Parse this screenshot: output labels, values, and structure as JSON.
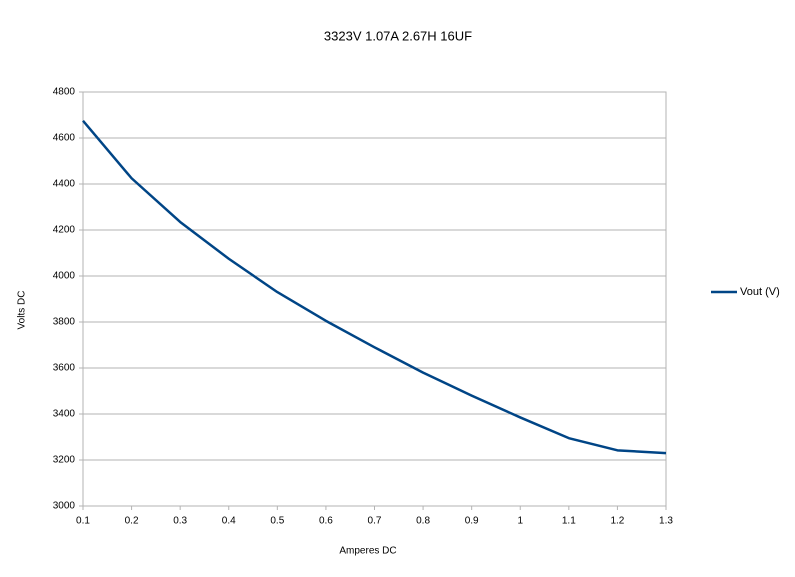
{
  "chart_data": {
    "type": "line",
    "title": "3323V 1.07A 2.67H 16UF",
    "x_label": "Amperes DC",
    "y_label": "Volts DC",
    "x": [
      0.1,
      0.2,
      0.3,
      0.4,
      0.5,
      0.6,
      0.7,
      0.8,
      0.9,
      1,
      1.1,
      1.2,
      1.3
    ],
    "series": [
      {
        "name": "Vout (V)",
        "color": "#004586",
        "values": [
          4675,
          4425,
          4235,
          4075,
          3930,
          3805,
          3690,
          3580,
          3480,
          3385,
          3295,
          3242,
          3230
        ]
      }
    ],
    "xlim": [
      0.1,
      1.3
    ],
    "xticks": [
      0.1,
      0.2,
      0.3,
      0.4,
      0.5,
      0.6,
      0.7,
      0.8,
      0.9,
      1,
      1.1,
      1.2,
      1.3
    ],
    "ylim": [
      3000,
      4800
    ],
    "yticks": [
      3000,
      3200,
      3400,
      3600,
      3800,
      4000,
      4200,
      4400,
      4600,
      4800
    ],
    "grid": true,
    "legend": "right"
  }
}
